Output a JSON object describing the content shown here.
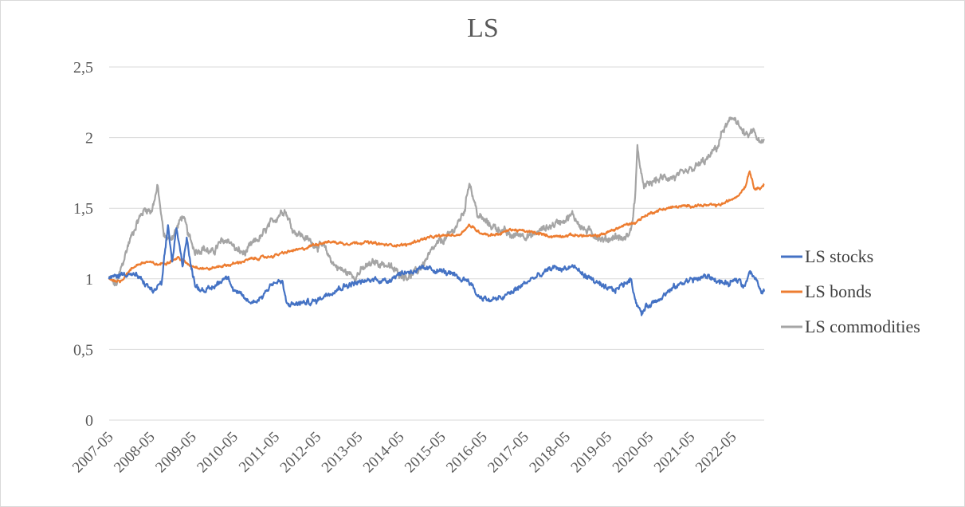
{
  "chart_data": {
    "type": "line",
    "title": "LS",
    "xlabel": "",
    "ylabel": "",
    "ylim": [
      0,
      2.5
    ],
    "ytick_labels": [
      "0",
      "0,5",
      "1",
      "1,5",
      "2",
      "2,5"
    ],
    "ytick_values": [
      0,
      0.5,
      1,
      1.5,
      2,
      2.5
    ],
    "x_range": [
      2007.333,
      2023.1
    ],
    "xtick_labels": [
      "2007-05",
      "2008-05",
      "2009-05",
      "2010-05",
      "2011-05",
      "2012-05",
      "2013-05",
      "2014-05",
      "2015-05",
      "2016-05",
      "2017-05",
      "2018-05",
      "2019-05",
      "2020-05",
      "2021-05",
      "2022-05"
    ],
    "xtick_values": [
      2007.333,
      2008.333,
      2009.333,
      2010.333,
      2011.333,
      2012.333,
      2013.333,
      2014.333,
      2015.333,
      2016.333,
      2017.333,
      2018.333,
      2019.333,
      2020.333,
      2021.333,
      2022.333
    ],
    "legend_position": "right",
    "series": [
      {
        "name": "LS stocks",
        "color": "#4472c4",
        "x": [
          2007.33,
          2007.5,
          2007.75,
          2008.0,
          2008.25,
          2008.4,
          2008.6,
          2008.75,
          2008.85,
          2008.95,
          2009.1,
          2009.2,
          2009.3,
          2009.4,
          2009.5,
          2009.75,
          2010.0,
          2010.2,
          2010.3,
          2010.5,
          2010.75,
          2011.0,
          2011.25,
          2011.5,
          2011.6,
          2011.75,
          2012.0,
          2012.3,
          2012.5,
          2012.75,
          2013.0,
          2013.25,
          2013.5,
          2013.75,
          2014.0,
          2014.25,
          2014.5,
          2014.75,
          2015.0,
          2015.25,
          2015.5,
          2015.75,
          2016.0,
          2016.2,
          2016.5,
          2016.75,
          2017.0,
          2017.25,
          2017.5,
          2017.75,
          2018.0,
          2018.25,
          2018.5,
          2018.75,
          2019.0,
          2019.25,
          2019.5,
          2019.75,
          2019.9,
          2020.0,
          2020.15,
          2020.25,
          2020.5,
          2020.75,
          2021.0,
          2021.25,
          2021.5,
          2021.75,
          2022.0,
          2022.25,
          2022.5,
          2022.6,
          2022.75,
          2022.9,
          2023.0,
          2023.1
        ],
        "values": [
          1.0,
          1.02,
          1.04,
          1.02,
          0.95,
          0.91,
          0.97,
          1.38,
          1.12,
          1.35,
          1.1,
          1.3,
          1.08,
          0.97,
          0.93,
          0.92,
          0.98,
          1.03,
          0.93,
          0.88,
          0.83,
          0.87,
          0.97,
          0.98,
          0.82,
          0.82,
          0.83,
          0.84,
          0.88,
          0.92,
          0.95,
          0.97,
          0.98,
          1.0,
          0.98,
          1.03,
          1.05,
          1.06,
          1.07,
          1.06,
          1.04,
          1.0,
          0.99,
          0.88,
          0.85,
          0.86,
          0.9,
          0.95,
          1.0,
          1.03,
          1.08,
          1.07,
          1.09,
          1.03,
          0.99,
          0.93,
          0.92,
          0.97,
          1.0,
          0.85,
          0.75,
          0.8,
          0.85,
          0.9,
          0.95,
          0.99,
          1.0,
          1.02,
          0.98,
          0.96,
          1.0,
          0.94,
          1.06,
          0.99,
          0.92,
          0.91
        ]
      },
      {
        "name": "LS bonds",
        "color": "#ed7d31",
        "x": [
          2007.33,
          2007.6,
          2007.8,
          2008.0,
          2008.25,
          2008.5,
          2008.75,
          2009.0,
          2009.25,
          2009.5,
          2009.75,
          2010.0,
          2010.25,
          2010.5,
          2010.75,
          2011.0,
          2011.25,
          2011.5,
          2011.75,
          2012.0,
          2012.25,
          2012.5,
          2012.75,
          2013.0,
          2013.5,
          2014.0,
          2014.5,
          2014.75,
          2015.0,
          2015.25,
          2015.5,
          2015.75,
          2016.0,
          2016.25,
          2016.5,
          2016.75,
          2017.0,
          2017.5,
          2018.0,
          2018.5,
          2019.0,
          2019.25,
          2019.5,
          2019.75,
          2020.0,
          2020.25,
          2020.5,
          2020.75,
          2021.0,
          2021.5,
          2022.0,
          2022.25,
          2022.5,
          2022.65,
          2022.75,
          2022.85,
          2023.0,
          2023.1
        ],
        "values": [
          1.0,
          0.98,
          1.05,
          1.1,
          1.12,
          1.1,
          1.12,
          1.15,
          1.1,
          1.08,
          1.07,
          1.09,
          1.1,
          1.12,
          1.14,
          1.15,
          1.16,
          1.18,
          1.2,
          1.21,
          1.24,
          1.26,
          1.26,
          1.25,
          1.26,
          1.24,
          1.24,
          1.27,
          1.29,
          1.3,
          1.31,
          1.31,
          1.38,
          1.33,
          1.31,
          1.32,
          1.35,
          1.33,
          1.3,
          1.31,
          1.3,
          1.32,
          1.35,
          1.38,
          1.4,
          1.45,
          1.48,
          1.5,
          1.51,
          1.52,
          1.52,
          1.55,
          1.6,
          1.66,
          1.77,
          1.65,
          1.64,
          1.67
        ]
      },
      {
        "name": "LS commodities",
        "color": "#a5a5a5",
        "x": [
          2007.33,
          2007.5,
          2007.65,
          2007.8,
          2008.0,
          2008.2,
          2008.35,
          2008.5,
          2008.65,
          2008.8,
          2008.95,
          2009.1,
          2009.25,
          2009.4,
          2009.6,
          2009.8,
          2010.0,
          2010.2,
          2010.4,
          2010.6,
          2010.8,
          2011.0,
          2011.2,
          2011.4,
          2011.55,
          2011.75,
          2012.0,
          2012.25,
          2012.5,
          2012.75,
          2013.0,
          2013.25,
          2013.5,
          2013.75,
          2014.0,
          2014.25,
          2014.5,
          2014.75,
          2015.0,
          2015.25,
          2015.5,
          2015.75,
          2015.9,
          2016.0,
          2016.2,
          2016.5,
          2016.75,
          2017.0,
          2017.25,
          2017.5,
          2017.75,
          2018.0,
          2018.25,
          2018.5,
          2018.75,
          2019.0,
          2019.25,
          2019.5,
          2019.75,
          2019.9,
          2020.0,
          2020.05,
          2020.15,
          2020.25,
          2020.5,
          2020.75,
          2021.0,
          2021.25,
          2021.5,
          2021.75,
          2022.0,
          2022.1,
          2022.25,
          2022.4,
          2022.55,
          2022.7,
          2022.85,
          2023.0,
          2023.1
        ],
        "values": [
          1.0,
          0.95,
          1.1,
          1.25,
          1.4,
          1.5,
          1.48,
          1.65,
          1.3,
          1.28,
          1.35,
          1.45,
          1.3,
          1.2,
          1.22,
          1.18,
          1.25,
          1.28,
          1.2,
          1.18,
          1.25,
          1.3,
          1.38,
          1.45,
          1.5,
          1.35,
          1.3,
          1.25,
          1.22,
          1.1,
          1.05,
          1.02,
          1.08,
          1.12,
          1.1,
          1.05,
          1.02,
          1.05,
          1.15,
          1.25,
          1.3,
          1.4,
          1.5,
          1.7,
          1.45,
          1.38,
          1.35,
          1.3,
          1.32,
          1.3,
          1.35,
          1.38,
          1.42,
          1.45,
          1.35,
          1.32,
          1.27,
          1.3,
          1.28,
          1.35,
          1.6,
          1.95,
          1.7,
          1.65,
          1.7,
          1.72,
          1.72,
          1.75,
          1.8,
          1.85,
          1.95,
          2.05,
          2.1,
          2.15,
          2.05,
          2.0,
          2.05,
          1.95,
          1.97
        ]
      }
    ]
  }
}
